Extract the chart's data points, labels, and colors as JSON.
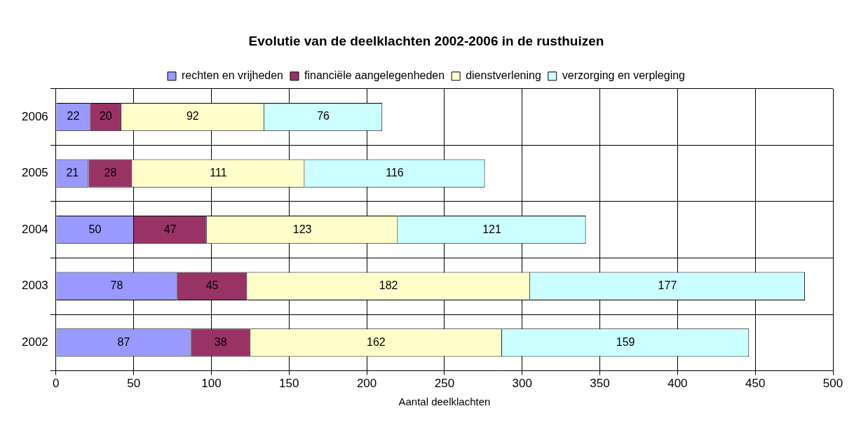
{
  "chart_data": {
    "type": "bar",
    "orientation": "horizontal",
    "stacked": true,
    "title": "Evolutie van de deelklachten 2002-2006 in de rusthuizen",
    "xlabel": "Aantal deelklachten",
    "categories": [
      "2006",
      "2005",
      "2004",
      "2003",
      "2002"
    ],
    "series": [
      {
        "name": "rechten en vrijheden",
        "color": "#9999ff",
        "values": [
          22,
          21,
          50,
          78,
          87
        ]
      },
      {
        "name": "financiële aangelegenheden",
        "color": "#993366",
        "values": [
          20,
          28,
          47,
          45,
          38
        ]
      },
      {
        "name": "dienstverlening",
        "color": "#ffffcc",
        "values": [
          92,
          111,
          123,
          182,
          162
        ]
      },
      {
        "name": "verzorging en verpleging",
        "color": "#ccffff",
        "values": [
          76,
          116,
          121,
          177,
          159
        ]
      }
    ],
    "xlim": [
      0,
      500
    ],
    "xticks": [
      0,
      50,
      100,
      150,
      200,
      250,
      300,
      350,
      400,
      450,
      500
    ],
    "grid": true,
    "legend": "top",
    "data_labels": true
  }
}
